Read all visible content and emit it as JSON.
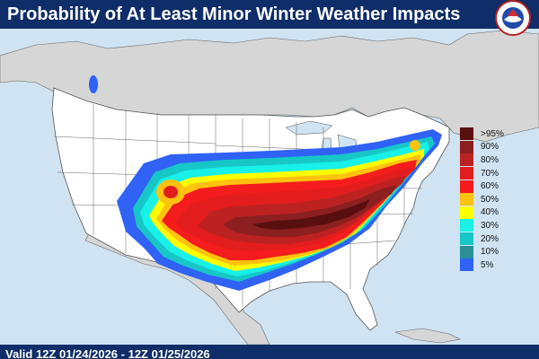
{
  "title": "Probability of At Least Minor Winter Weather Impacts",
  "valid_time": "Valid 12Z 01/24/2026 - 12Z 01/25/2026",
  "legend": [
    {
      "label": ">95%",
      "color": "#5a0f0f"
    },
    {
      "label": "90%",
      "color": "#8c1f1f"
    },
    {
      "label": "80%",
      "color": "#bd2222"
    },
    {
      "label": "70%",
      "color": "#e31d1d"
    },
    {
      "label": "60%",
      "color": "#f41c1c"
    },
    {
      "label": "50%",
      "color": "#ffc20e"
    },
    {
      "label": "40%",
      "color": "#ffff00"
    },
    {
      "label": "30%",
      "color": "#18f0e8"
    },
    {
      "label": "20%",
      "color": "#17c7c7"
    },
    {
      "label": "10%",
      "color": "#2a8f96"
    },
    {
      "label": "5%",
      "color": "#2f62f5"
    }
  ],
  "map_colors": {
    "water": "#cfe3f2",
    "us_land": "#ffffff",
    "other_land": "#d6d6d6",
    "borders": "#555555"
  },
  "logo": "noaa-nws-logo"
}
